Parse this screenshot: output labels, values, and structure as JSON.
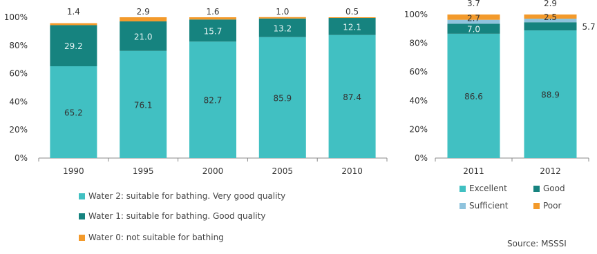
{
  "colors": {
    "water2_excellent": "#41c0c2",
    "water1_good": "#16837f",
    "sufficient": "#8fc3dd",
    "water0_poor": "#f39a2b",
    "axis": "#888888",
    "label_dark": "#333333",
    "label_light": "#e6f4f4"
  },
  "chart_data": [
    {
      "type": "bar",
      "stacked": true,
      "title": "",
      "xlabel": "",
      "ylabel": "",
      "ylim": [
        0,
        100
      ],
      "y_ticks": [
        "0%",
        "20%",
        "40%",
        "60%",
        "80%",
        "100%"
      ],
      "categories": [
        "1990",
        "1995",
        "2000",
        "2005",
        "2010"
      ],
      "series": [
        {
          "name": "Water 2: suitable for bathing. Very good quality",
          "color_key": "water2_excellent",
          "values": [
            65.2,
            76.1,
            82.7,
            85.9,
            87.4
          ],
          "labels": [
            "65.2",
            "76.1",
            "82.7",
            "85.9",
            "87.4"
          ]
        },
        {
          "name": "Water 1: suitable for bathing. Good quality",
          "color_key": "water1_good",
          "values": [
            29.2,
            21.0,
            15.7,
            13.2,
            12.1
          ],
          "labels": [
            "29.2",
            "21.0",
            "15.7",
            "13.2",
            "12.1"
          ]
        },
        {
          "name": "Water 0: not suitable for bathing",
          "color_key": "water0_poor",
          "values": [
            1.4,
            2.9,
            1.6,
            1.0,
            0.5
          ],
          "labels": [
            "1.4",
            "2.9",
            "1.6",
            "1.0",
            "0.5"
          ]
        }
      ],
      "legend_position": "bottom-left"
    },
    {
      "type": "bar",
      "stacked": true,
      "title": "",
      "xlabel": "",
      "ylabel": "",
      "ylim": [
        0,
        100
      ],
      "y_ticks": [
        "0%",
        "20%",
        "40%",
        "60%",
        "80%",
        "100%"
      ],
      "categories": [
        "2011",
        "2012"
      ],
      "series": [
        {
          "name": "Excellent",
          "color_key": "water2_excellent",
          "values": [
            86.6,
            88.9
          ],
          "labels": [
            "86.6",
            "88.9"
          ]
        },
        {
          "name": "Good",
          "color_key": "water1_good",
          "values": [
            7.0,
            5.7
          ],
          "labels": [
            "7.0",
            "5.7"
          ]
        },
        {
          "name": "Sufficient",
          "color_key": "sufficient",
          "values": [
            2.7,
            2.5
          ],
          "labels": [
            "2.7",
            "2.5"
          ]
        },
        {
          "name": "Poor",
          "color_key": "water0_poor",
          "values": [
            3.7,
            2.9
          ],
          "labels": [
            "3.7",
            "2.9"
          ]
        }
      ],
      "legend_position": "bottom"
    }
  ],
  "legend_left": [
    "Water 2: suitable for bathing. Very good quality",
    "Water 1: suitable for bathing. Good quality",
    "Water 0: not suitable for bathing"
  ],
  "legend_right": [
    "Excellent",
    "Good",
    "Sufficient",
    "Poor"
  ],
  "source": "Source: MSSSI"
}
